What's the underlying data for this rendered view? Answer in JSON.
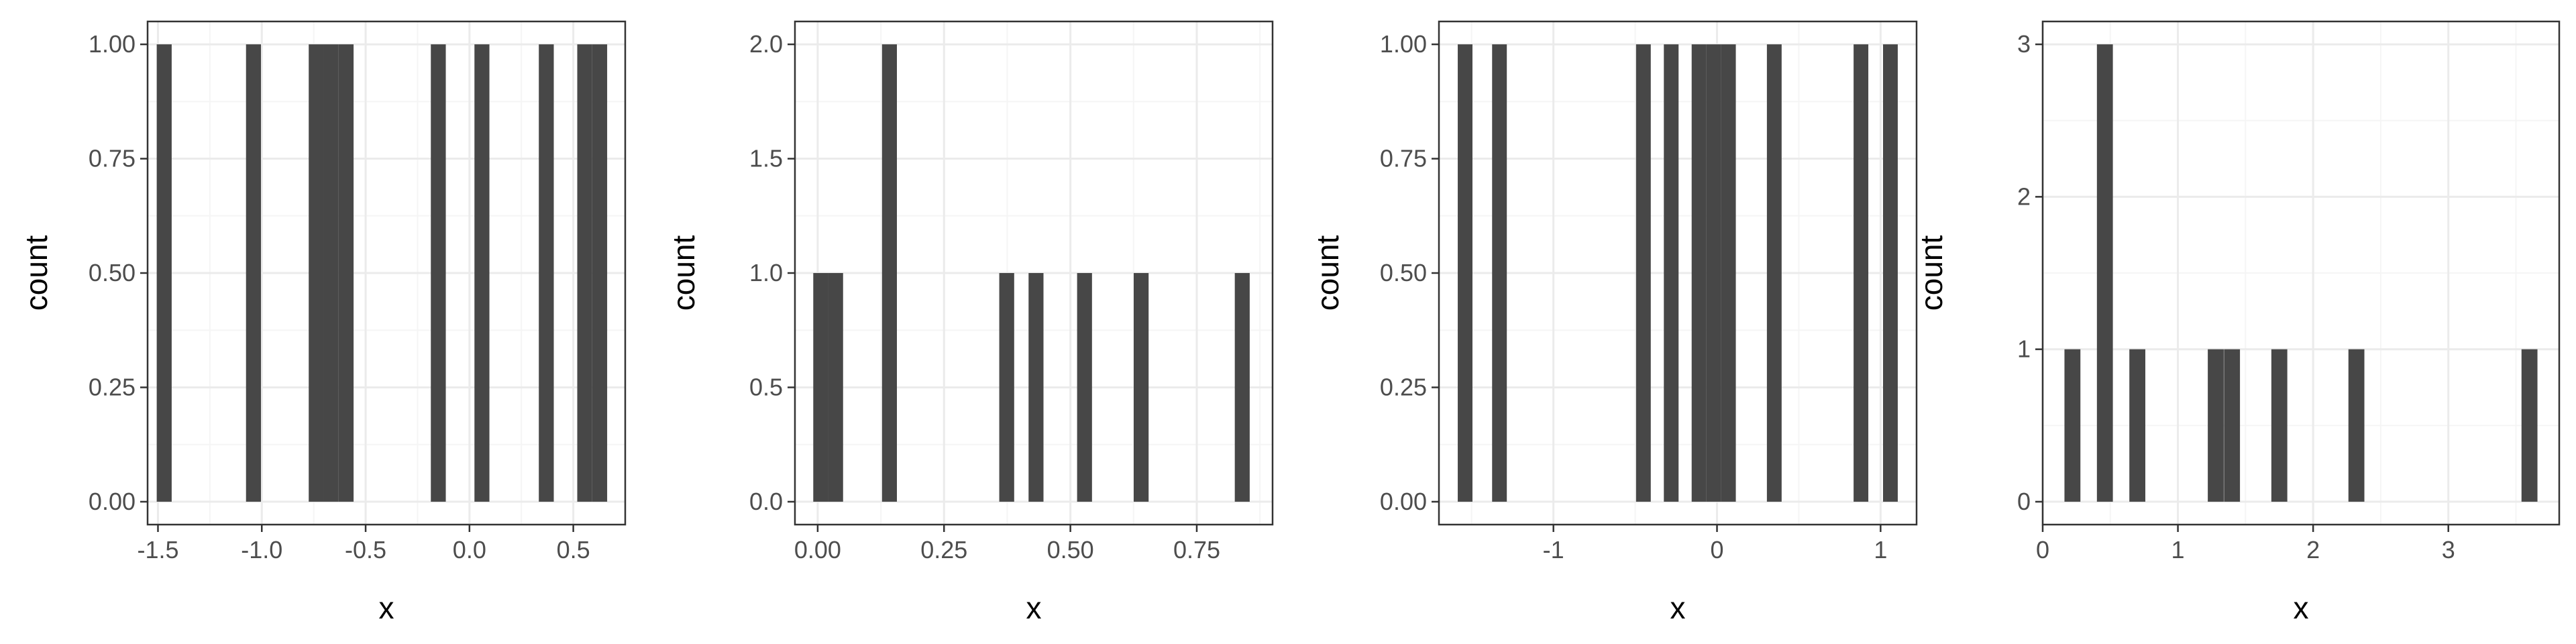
{
  "colors": {
    "bar": "#474747",
    "panel_border": "#333333",
    "grid_major": "#ebebeb",
    "grid_minor": "#f5f5f5",
    "tick_text": "#4d4d4d",
    "background": "#ffffff"
  },
  "chart_data": [
    {
      "type": "bar",
      "xlabel": "x",
      "ylabel": "count",
      "xlim": [
        -1.55,
        0.75
      ],
      "ylim": [
        -0.05,
        1.05
      ],
      "bin_width": 0.072,
      "xticks": [
        {
          "value": -1.5,
          "label": "-1.5"
        },
        {
          "value": -1.0,
          "label": "-1.0"
        },
        {
          "value": -0.5,
          "label": "-0.5"
        },
        {
          "value": 0.0,
          "label": "0.0"
        },
        {
          "value": 0.5,
          "label": "0.5"
        }
      ],
      "yticks": [
        {
          "value": 0,
          "label": "0.00"
        },
        {
          "value": 0.25,
          "label": "0.25"
        },
        {
          "value": 0.5,
          "label": "0.50"
        },
        {
          "value": 0.75,
          "label": "0.75"
        },
        {
          "value": 1.0,
          "label": "1.00"
        }
      ],
      "bins": [
        {
          "x": -1.47,
          "count": 1
        },
        {
          "x": -1.04,
          "count": 1
        },
        {
          "x": -0.738,
          "count": 1
        },
        {
          "x": -0.666,
          "count": 1
        },
        {
          "x": -0.594,
          "count": 1
        },
        {
          "x": -0.15,
          "count": 1
        },
        {
          "x": 0.06,
          "count": 1
        },
        {
          "x": 0.37,
          "count": 1
        },
        {
          "x": 0.555,
          "count": 1
        },
        {
          "x": 0.627,
          "count": 1
        }
      ]
    },
    {
      "type": "bar",
      "xlabel": "x",
      "ylabel": "count",
      "xlim": [
        -0.045,
        0.9
      ],
      "ylim": [
        -0.1,
        2.1
      ],
      "bin_width": 0.0295,
      "xticks": [
        {
          "value": 0.0,
          "label": "0.00"
        },
        {
          "value": 0.25,
          "label": "0.25"
        },
        {
          "value": 0.5,
          "label": "0.50"
        },
        {
          "value": 0.75,
          "label": "0.75"
        }
      ],
      "yticks": [
        {
          "value": 0,
          "label": "0.0"
        },
        {
          "value": 0.5,
          "label": "0.5"
        },
        {
          "value": 1.0,
          "label": "1.0"
        },
        {
          "value": 1.5,
          "label": "1.5"
        },
        {
          "value": 2.0,
          "label": "2.0"
        }
      ],
      "bins": [
        {
          "x": 0.006,
          "count": 1
        },
        {
          "x": 0.0355,
          "count": 1
        },
        {
          "x": 0.142,
          "count": 2
        },
        {
          "x": 0.374,
          "count": 1
        },
        {
          "x": 0.432,
          "count": 1
        },
        {
          "x": 0.528,
          "count": 1
        },
        {
          "x": 0.64,
          "count": 1
        },
        {
          "x": 0.84,
          "count": 1
        }
      ]
    },
    {
      "type": "bar",
      "xlabel": "x",
      "ylabel": "count",
      "xlim": [
        -1.7,
        1.22
      ],
      "ylim": [
        -0.05,
        1.05
      ],
      "bin_width": 0.09,
      "xticks": [
        {
          "value": -1,
          "label": "-1"
        },
        {
          "value": 0,
          "label": "0"
        },
        {
          "value": 1,
          "label": "1"
        }
      ],
      "yticks": [
        {
          "value": 0,
          "label": "0.00"
        },
        {
          "value": 0.25,
          "label": "0.25"
        },
        {
          "value": 0.5,
          "label": "0.50"
        },
        {
          "value": 0.75,
          "label": "0.75"
        },
        {
          "value": 1.0,
          "label": "1.00"
        }
      ],
      "bins": [
        {
          "x": -1.54,
          "count": 1
        },
        {
          "x": -1.33,
          "count": 1
        },
        {
          "x": -0.45,
          "count": 1
        },
        {
          "x": -0.28,
          "count": 1
        },
        {
          "x": -0.11,
          "count": 1
        },
        {
          "x": -0.02,
          "count": 1
        },
        {
          "x": 0.07,
          "count": 1
        },
        {
          "x": 0.35,
          "count": 1
        },
        {
          "x": 0.88,
          "count": 1
        },
        {
          "x": 1.06,
          "count": 1
        }
      ]
    },
    {
      "type": "bar",
      "xlabel": "x",
      "ylabel": "count",
      "xlim": [
        0.0,
        3.82
      ],
      "ylim": [
        -0.15,
        3.15
      ],
      "bin_width": 0.118,
      "xticks": [
        {
          "value": 0,
          "label": "0"
        },
        {
          "value": 1,
          "label": "1"
        },
        {
          "value": 2,
          "label": "2"
        },
        {
          "value": 3,
          "label": "3"
        }
      ],
      "yticks": [
        {
          "value": 0,
          "label": "0"
        },
        {
          "value": 1,
          "label": "1"
        },
        {
          "value": 2,
          "label": "2"
        },
        {
          "value": 3,
          "label": "3"
        }
      ],
      "bins": [
        {
          "x": 0.22,
          "count": 1
        },
        {
          "x": 0.46,
          "count": 3
        },
        {
          "x": 0.7,
          "count": 1
        },
        {
          "x": 1.28,
          "count": 1
        },
        {
          "x": 1.4,
          "count": 1
        },
        {
          "x": 1.75,
          "count": 1
        },
        {
          "x": 2.32,
          "count": 1
        },
        {
          "x": 3.6,
          "count": 1
        }
      ]
    }
  ]
}
